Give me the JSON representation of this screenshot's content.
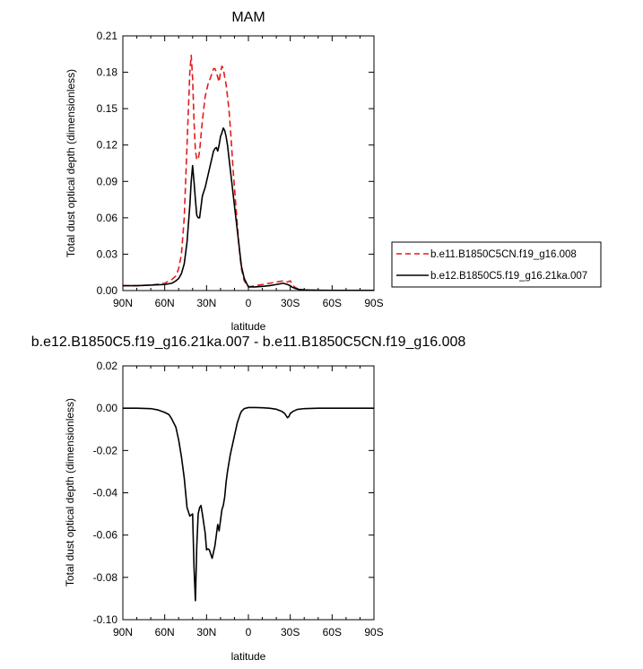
{
  "chart_data": [
    {
      "type": "line",
      "title": "MAM",
      "xlabel": "latitude",
      "ylabel": "Total dust optical depth (dimensionless)",
      "xlim": [
        90,
        -90
      ],
      "ylim": [
        0,
        0.21
      ],
      "x_ticks": [
        "90N",
        "60N",
        "30N",
        "0",
        "30S",
        "60S",
        "90S"
      ],
      "y_ticks": [
        "0.00",
        "0.03",
        "0.06",
        "0.09",
        "0.12",
        "0.15",
        "0.18",
        "0.21"
      ],
      "legend_position": "right",
      "series": [
        {
          "name": "b.e11.B1850C5CN.f19_g16.008",
          "color": "#e41a1c",
          "dash": "dashed",
          "x": [
            90,
            80,
            70,
            60,
            55,
            52,
            50,
            48,
            46,
            44,
            42,
            41,
            40,
            39,
            38,
            37,
            36,
            35,
            33,
            31,
            29,
            27,
            25,
            24,
            23,
            22,
            21,
            20,
            19,
            18,
            17,
            16,
            15,
            14,
            13,
            12,
            11,
            10,
            9,
            8,
            7,
            6,
            5,
            3,
            0,
            -5,
            -10,
            -15,
            -20,
            -25,
            -28,
            -30,
            -31,
            -33,
            -36,
            -40,
            -50,
            -60,
            -70,
            -80,
            -90
          ],
          "y": [
            0.004,
            0.004,
            0.0045,
            0.006,
            0.009,
            0.012,
            0.018,
            0.03,
            0.06,
            0.12,
            0.18,
            0.194,
            0.175,
            0.14,
            0.115,
            0.108,
            0.108,
            0.115,
            0.14,
            0.16,
            0.17,
            0.176,
            0.183,
            0.183,
            0.18,
            0.176,
            0.172,
            0.18,
            0.185,
            0.183,
            0.176,
            0.17,
            0.16,
            0.15,
            0.135,
            0.118,
            0.1,
            0.085,
            0.07,
            0.055,
            0.04,
            0.028,
            0.018,
            0.008,
            0.003,
            0.004,
            0.005,
            0.006,
            0.007,
            0.008,
            0.007,
            0.008,
            0.006,
            0.003,
            0.001,
            0.0005,
            0.0002,
            0.0001,
            0.0001,
            0.0001,
            0.0001
          ]
        },
        {
          "name": "b.e12.B1850C5.f19_g16.21ka.007",
          "color": "#000000",
          "dash": "solid",
          "x": [
            90,
            80,
            70,
            60,
            55,
            52,
            50,
            48,
            46,
            44,
            42,
            41,
            40,
            39,
            38,
            37,
            36,
            35,
            33,
            31,
            29,
            27,
            25,
            24,
            23,
            22,
            21,
            20,
            19,
            18,
            17,
            16,
            15,
            14,
            13,
            12,
            11,
            10,
            9,
            8,
            7,
            6,
            5,
            3,
            0,
            -5,
            -10,
            -15,
            -20,
            -25,
            -28,
            -30,
            -31,
            -33,
            -36,
            -40,
            -50,
            -60,
            -70,
            -80,
            -90
          ],
          "y": [
            0.004,
            0.004,
            0.0045,
            0.005,
            0.006,
            0.008,
            0.01,
            0.014,
            0.022,
            0.04,
            0.07,
            0.09,
            0.103,
            0.09,
            0.075,
            0.062,
            0.06,
            0.06,
            0.078,
            0.085,
            0.095,
            0.105,
            0.115,
            0.117,
            0.118,
            0.115,
            0.12,
            0.127,
            0.13,
            0.134,
            0.132,
            0.127,
            0.12,
            0.11,
            0.1,
            0.09,
            0.08,
            0.07,
            0.06,
            0.05,
            0.04,
            0.03,
            0.02,
            0.01,
            0.003,
            0.003,
            0.0035,
            0.004,
            0.005,
            0.006,
            0.005,
            0.004,
            0.003,
            0.002,
            0.001,
            0.0005,
            0.0002,
            0.0001,
            0.0001,
            0.0001,
            0.0001
          ]
        }
      ]
    },
    {
      "type": "line",
      "title": "b.e12.B1850C5.f19_g16.21ka.007 - b.e11.B1850C5CN.f19_g16.008",
      "xlabel": "latitude",
      "ylabel": "Total dust optical depth (dimensionless)",
      "xlim": [
        90,
        -90
      ],
      "ylim": [
        -0.1,
        0.02
      ],
      "x_ticks": [
        "90N",
        "60N",
        "30N",
        "0",
        "30S",
        "60S",
        "90S"
      ],
      "y_ticks": [
        "0.02",
        "0.00",
        "-0.02",
        "-0.04",
        "-0.06",
        "-0.08",
        "-0.10"
      ],
      "series": [
        {
          "color": "#000000",
          "dash": "solid",
          "x": [
            90,
            80,
            70,
            65,
            60,
            57,
            55,
            52,
            50,
            48,
            46,
            44,
            42,
            41,
            40,
            39,
            38,
            37,
            36,
            35,
            34,
            33,
            31,
            30,
            29,
            28,
            27,
            26,
            25,
            24,
            23,
            22,
            21,
            20,
            19,
            18,
            17,
            16,
            15,
            14,
            13,
            12,
            11,
            10,
            9,
            8,
            7,
            6,
            5,
            3,
            0,
            -5,
            -10,
            -15,
            -20,
            -24,
            -26,
            -27,
            -28,
            -29,
            -30,
            -32,
            -35,
            -40,
            -50,
            -60,
            -70,
            -80,
            -90
          ],
          "y": [
            0.0,
            0.0,
            -0.0002,
            -0.0008,
            -0.002,
            -0.003,
            -0.005,
            -0.009,
            -0.015,
            -0.023,
            -0.033,
            -0.047,
            -0.051,
            -0.0505,
            -0.05,
            -0.075,
            -0.091,
            -0.065,
            -0.05,
            -0.047,
            -0.046,
            -0.05,
            -0.059,
            -0.067,
            -0.0665,
            -0.067,
            -0.069,
            -0.071,
            -0.068,
            -0.065,
            -0.06,
            -0.055,
            -0.058,
            -0.053,
            -0.048,
            -0.046,
            -0.042,
            -0.035,
            -0.03,
            -0.026,
            -0.022,
            -0.019,
            -0.016,
            -0.013,
            -0.01,
            -0.007,
            -0.005,
            -0.003,
            -0.0015,
            -0.0002,
            0.0003,
            0.0003,
            0.0002,
            0.0,
            -0.0005,
            -0.0015,
            -0.0025,
            -0.0035,
            -0.0045,
            -0.004,
            -0.0025,
            -0.0015,
            -0.0006,
            -0.0002,
            0.0,
            0.0,
            0.0,
            0.0,
            0.0
          ]
        }
      ]
    }
  ]
}
